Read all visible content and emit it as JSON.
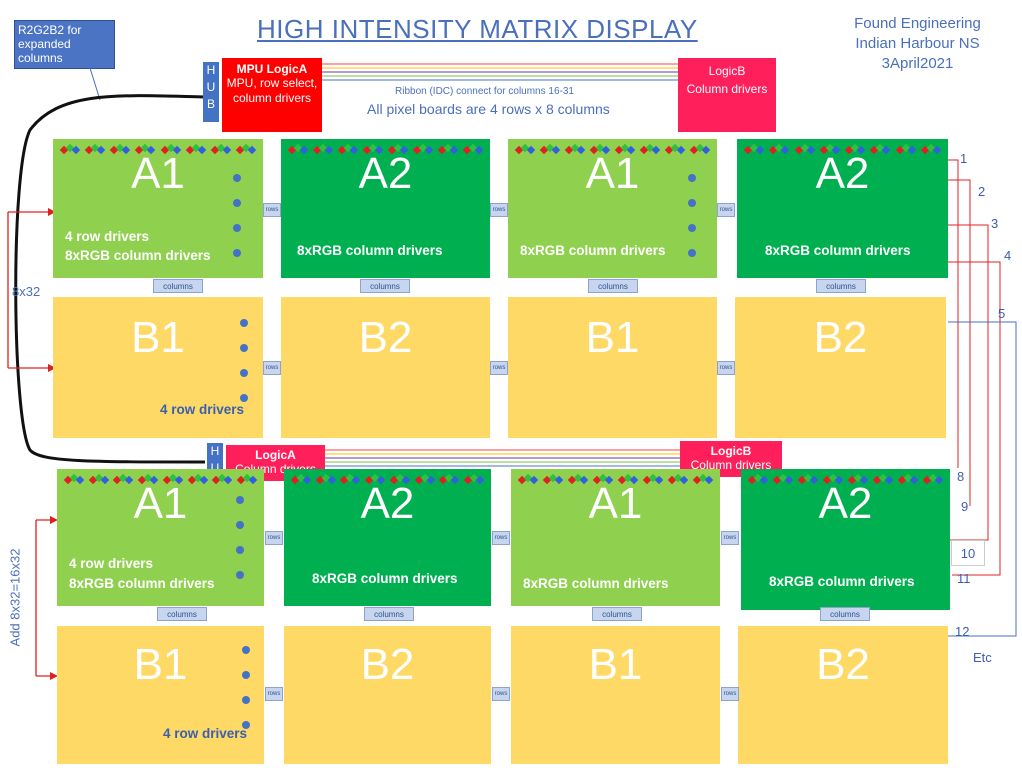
{
  "title": "HIGH INTENSITY MATRIX DISPLAY",
  "org": {
    "line1": "Found Engineering",
    "line2": "Indian Harbour NS",
    "line3": "3April2021"
  },
  "r2note": "R2G2B2 for expanded columns",
  "hub_letters": [
    "H",
    "U",
    "B"
  ],
  "mpu": {
    "title": "MPU LogicA",
    "body": "MPU, row select, column drivers"
  },
  "logicB_top": {
    "title": "LogicB",
    "body": "Column drivers"
  },
  "logicA_bot": {
    "title": "LogicA",
    "body": "Column drivers"
  },
  "logicB_bot": {
    "title": "LogicB",
    "body": "Column drivers"
  },
  "ribbon_note": "Ribbon (IDC) connect for columns 16-31",
  "pixel_note": "All pixel boards are 4 rows x 8 columns",
  "side_8x32": "8x32",
  "side_add": "Add 8x32=16x32",
  "board_labels": {
    "a1": "A1",
    "a2": "A2",
    "b1": "B1",
    "b2": "B2"
  },
  "row_drivers": "4 row drivers",
  "col_drivers": "8xRGB column drivers",
  "columns_label": "columns",
  "rows_label": "rows",
  "right_numbers": [
    "1",
    "2",
    "3",
    "4",
    "5",
    "8",
    "9",
    "10",
    "11",
    "12"
  ],
  "etc": "Etc",
  "colors": {
    "light_green": "#8fd14f",
    "dark_green": "#00b050",
    "yellow": "#ffd966",
    "red": "#ff0000",
    "pink": "#ff1f5a",
    "blue": "#4472c4"
  }
}
